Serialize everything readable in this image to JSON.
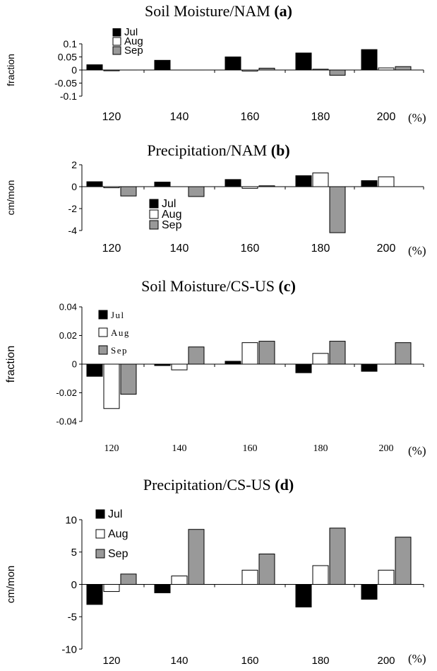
{
  "figure": {
    "panels": [
      {
        "title": "Soil Moisture/NAM",
        "tag": "a"
      },
      {
        "title": "Precipitation/NAM",
        "tag": "b"
      },
      {
        "title": "Soil Moisture/CS-US",
        "tag": "c"
      },
      {
        "title": "Precipitation/CS-US",
        "tag": "d"
      }
    ],
    "x_unit": "(%)"
  },
  "chart_data": [
    {
      "type": "bar",
      "title": "Soil Moisture/NAM (a)",
      "ylabel": "fraction",
      "categories": [
        "120",
        "140",
        "160",
        "180",
        "200"
      ],
      "ylim": [
        -0.1,
        0.1
      ],
      "yticks": [
        "0.1",
        "0.05",
        "0",
        "-0.05",
        "-0.1"
      ],
      "legend_position": "top-left",
      "series": [
        {
          "name": "Jul",
          "color": "#000000",
          "values": [
            0.02,
            0.037,
            0.05,
            0.065,
            0.078
          ]
        },
        {
          "name": "Aug",
          "color": "#ffffff",
          "values": [
            -0.003,
            0,
            -0.004,
            0.003,
            0.008
          ]
        },
        {
          "name": "Sep",
          "color": "#999999",
          "values": [
            0,
            0,
            0.007,
            -0.02,
            0.013
          ]
        }
      ]
    },
    {
      "type": "bar",
      "title": "Precipitation/NAM (b)",
      "ylabel": "cm/mon",
      "categories": [
        "120",
        "140",
        "160",
        "180",
        "200"
      ],
      "ylim": [
        -4,
        2
      ],
      "yticks": [
        "2",
        "0",
        "-2",
        "-4"
      ],
      "legend_position": "bottom-left",
      "series": [
        {
          "name": "Jul",
          "color": "#000000",
          "values": [
            0.45,
            0.42,
            0.65,
            1.0,
            0.55
          ]
        },
        {
          "name": "Aug",
          "color": "#ffffff",
          "values": [
            -0.1,
            0,
            -0.15,
            1.25,
            0.9
          ]
        },
        {
          "name": "Sep",
          "color": "#999999",
          "values": [
            -0.85,
            -0.9,
            0.08,
            -4.2,
            0
          ]
        }
      ]
    },
    {
      "type": "bar",
      "title": "Soil Moisture/CS-US (c)",
      "ylabel": "fraction",
      "categories": [
        "120",
        "140",
        "160",
        "180",
        "200"
      ],
      "ylim": [
        -0.04,
        0.04
      ],
      "yticks": [
        "0.04",
        "0.02",
        "0",
        "-0.02",
        "-0.04"
      ],
      "legend_position": "top-left",
      "series": [
        {
          "name": "Jul",
          "color": "#000000",
          "values": [
            -0.0085,
            -0.001,
            0.002,
            -0.006,
            -0.005
          ]
        },
        {
          "name": "Aug",
          "color": "#ffffff",
          "values": [
            -0.031,
            -0.004,
            0.015,
            0.0075,
            0
          ]
        },
        {
          "name": "Sep",
          "color": "#999999",
          "values": [
            -0.021,
            0.012,
            0.016,
            0.016,
            0.015
          ]
        }
      ]
    },
    {
      "type": "bar",
      "title": "Precipitation/CS-US (d)",
      "ylabel": "cm/mon",
      "categories": [
        "120",
        "140",
        "160",
        "180",
        "200"
      ],
      "ylim": [
        -10,
        10
      ],
      "yticks": [
        "10",
        "5",
        "0",
        "-5",
        "-10"
      ],
      "legend_position": "top-left",
      "series": [
        {
          "name": "Jul",
          "color": "#000000",
          "values": [
            -3.1,
            -1.3,
            0,
            -3.5,
            -2.3
          ]
        },
        {
          "name": "Aug",
          "color": "#ffffff",
          "values": [
            -1.1,
            1.3,
            2.2,
            2.9,
            2.2
          ]
        },
        {
          "name": "Sep",
          "color": "#999999",
          "values": [
            1.6,
            8.5,
            4.7,
            8.7,
            7.3
          ]
        }
      ]
    }
  ]
}
